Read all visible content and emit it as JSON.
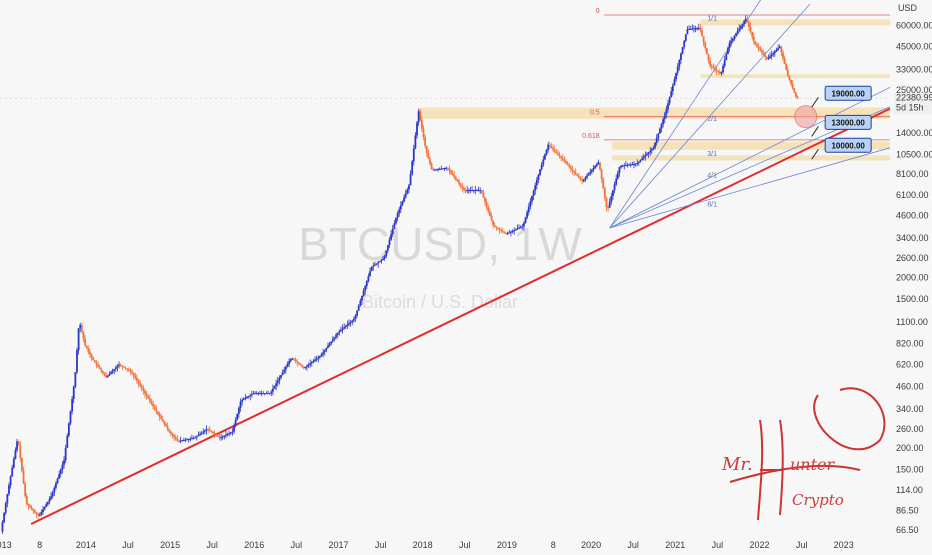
{
  "chart_data": {
    "type": "candlestick",
    "watermark": {
      "symbol": "BTCUSD, 1W",
      "description": "Bitcoin / U.S. Dollar"
    },
    "currency": "USD",
    "y_scale": "log",
    "ylim": [
      58,
      80000
    ],
    "x_labels": [
      "2013",
      "8",
      "2014",
      "Jul",
      "2015",
      "Jul",
      "2016",
      "Jul",
      "2017",
      "Jul",
      "2018",
      "Jul",
      "2019",
      "8",
      "2020",
      "Jul",
      "2021",
      "Jul",
      "2022",
      "Jul",
      "2023"
    ],
    "y_ticks": [
      "60000.00",
      "45000.00",
      "33000.00",
      "25000.00",
      "14000.00",
      "10500.00",
      "8100.00",
      "6100.00",
      "4600.00",
      "3400.00",
      "2600.00",
      "2000.00",
      "1500.00",
      "1100.00",
      "820.00",
      "620.00",
      "460.00",
      "340.00",
      "260.00",
      "200.00",
      "150.00",
      "114.00",
      "86.50",
      "66.50"
    ],
    "y_tick_values": [
      60000,
      45000,
      33000,
      25000,
      14000,
      10500,
      8100,
      6100,
      4600,
      3400,
      2600,
      2000,
      1500,
      1100,
      820,
      620,
      460,
      340,
      260,
      200,
      150,
      114,
      86.5,
      66.5
    ],
    "last_price": {
      "label": "22380.99",
      "sub": "5d 15h",
      "value": 22380.99
    },
    "anchors": [
      {
        "t": 2013.0,
        "p": 65
      },
      {
        "t": 2013.08,
        "p": 110
      },
      {
        "t": 2013.2,
        "p": 230
      },
      {
        "t": 2013.3,
        "p": 95
      },
      {
        "t": 2013.45,
        "p": 80
      },
      {
        "t": 2013.6,
        "p": 105
      },
      {
        "t": 2013.75,
        "p": 170
      },
      {
        "t": 2013.88,
        "p": 520
      },
      {
        "t": 2013.93,
        "p": 1120
      },
      {
        "t": 2014.0,
        "p": 800
      },
      {
        "t": 2014.1,
        "p": 650
      },
      {
        "t": 2014.25,
        "p": 520
      },
      {
        "t": 2014.4,
        "p": 620
      },
      {
        "t": 2014.55,
        "p": 560
      },
      {
        "t": 2014.75,
        "p": 390
      },
      {
        "t": 2015.0,
        "p": 250
      },
      {
        "t": 2015.1,
        "p": 220
      },
      {
        "t": 2015.3,
        "p": 230
      },
      {
        "t": 2015.45,
        "p": 260
      },
      {
        "t": 2015.6,
        "p": 230
      },
      {
        "t": 2015.75,
        "p": 250
      },
      {
        "t": 2015.85,
        "p": 380
      },
      {
        "t": 2016.0,
        "p": 420
      },
      {
        "t": 2016.2,
        "p": 420
      },
      {
        "t": 2016.45,
        "p": 680
      },
      {
        "t": 2016.6,
        "p": 590
      },
      {
        "t": 2016.8,
        "p": 700
      },
      {
        "t": 2017.0,
        "p": 950
      },
      {
        "t": 2017.2,
        "p": 1150
      },
      {
        "t": 2017.4,
        "p": 2300
      },
      {
        "t": 2017.55,
        "p": 2600
      },
      {
        "t": 2017.7,
        "p": 4600
      },
      {
        "t": 2017.85,
        "p": 7000
      },
      {
        "t": 2017.96,
        "p": 19000
      },
      {
        "t": 2018.05,
        "p": 11000
      },
      {
        "t": 2018.12,
        "p": 8500
      },
      {
        "t": 2018.3,
        "p": 8800
      },
      {
        "t": 2018.5,
        "p": 6500
      },
      {
        "t": 2018.7,
        "p": 6500
      },
      {
        "t": 2018.85,
        "p": 4000
      },
      {
        "t": 2019.0,
        "p": 3600
      },
      {
        "t": 2019.2,
        "p": 4000
      },
      {
        "t": 2019.4,
        "p": 8500
      },
      {
        "t": 2019.5,
        "p": 12000
      },
      {
        "t": 2019.7,
        "p": 9500
      },
      {
        "t": 2019.9,
        "p": 7300
      },
      {
        "t": 2020.1,
        "p": 9500
      },
      {
        "t": 2020.2,
        "p": 4900
      },
      {
        "t": 2020.35,
        "p": 9000
      },
      {
        "t": 2020.55,
        "p": 9300
      },
      {
        "t": 2020.75,
        "p": 11500
      },
      {
        "t": 2020.9,
        "p": 19000
      },
      {
        "t": 2021.0,
        "p": 29000
      },
      {
        "t": 2021.15,
        "p": 57000
      },
      {
        "t": 2021.3,
        "p": 58000
      },
      {
        "t": 2021.42,
        "p": 35000
      },
      {
        "t": 2021.55,
        "p": 31000
      },
      {
        "t": 2021.65,
        "p": 47000
      },
      {
        "t": 2021.85,
        "p": 66000
      },
      {
        "t": 2021.95,
        "p": 47000
      },
      {
        "t": 2022.1,
        "p": 38000
      },
      {
        "t": 2022.25,
        "p": 45000
      },
      {
        "t": 2022.35,
        "p": 30000
      },
      {
        "t": 2022.45,
        "p": 22380
      }
    ],
    "annotations": {
      "fib_levels": [
        {
          "label": "0",
          "value": 69000
        },
        {
          "label": "0.5",
          "value": 17500
        },
        {
          "label": "0.618",
          "value": 12800
        }
      ],
      "fan_labels": [
        "1/1",
        "2/1",
        "3/1",
        "4/1",
        "8/1"
      ],
      "targets": [
        "19000.00",
        "13000.00",
        "10000.00"
      ]
    },
    "signature": {
      "line1": "Mr.",
      "line2": "unter",
      "line3": "Crypto"
    }
  }
}
